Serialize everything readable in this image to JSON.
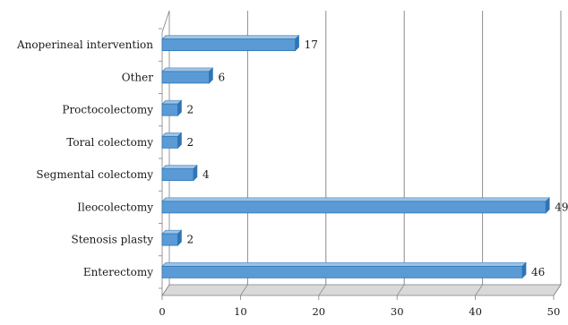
{
  "chart_data": {
    "type": "bar",
    "orientation": "horizontal",
    "categories": [
      "Anoperineal intervention",
      "Other",
      "Proctocolectomy",
      "Toral colectomy",
      "Segmental colectomy",
      "Ileocolectomy",
      "Stenosis plasty",
      "Enterectomy"
    ],
    "values": [
      17,
      6,
      2,
      2,
      4,
      49,
      2,
      46
    ],
    "value_labels": [
      "17",
      "6",
      "2",
      "2",
      "4",
      "49",
      "2",
      "46"
    ],
    "xlim": [
      0,
      50
    ],
    "xticks": [
      0,
      10,
      20,
      30,
      40,
      50
    ],
    "xtick_labels": [
      "0",
      "10",
      "20",
      "30",
      "40",
      "50"
    ],
    "grid": "vertical",
    "legend": "none",
    "colors": {
      "bar_front": "#5b9bd5",
      "bar_top": "#9dc3e6",
      "bar_side": "#2e75b6",
      "grid": "#8c8c8c",
      "axis": "#808080",
      "floor": "#d9d9d9"
    }
  }
}
